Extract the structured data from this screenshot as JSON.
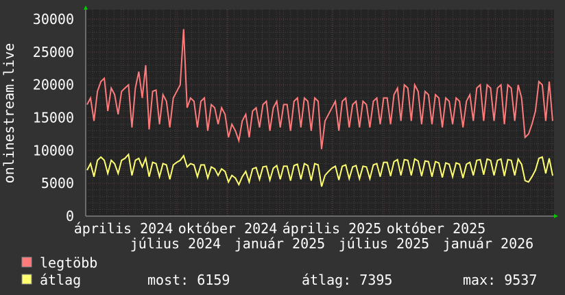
{
  "chart_data": {
    "type": "line",
    "ylabel": "onlinestream.live",
    "ylim": [
      0,
      30000
    ],
    "yticks": [
      "0",
      "5000",
      "10000",
      "15000",
      "20000",
      "25000",
      "30000"
    ],
    "yvalues": [
      0,
      5000,
      10000,
      15000,
      20000,
      25000,
      30000
    ],
    "xticks": [
      "április 2024",
      "július 2024",
      "október 2024",
      "január 2025",
      "április 2025",
      "július 2025",
      "október 2025",
      "január 2026"
    ],
    "grid": true,
    "colors": {
      "background": "#323232",
      "plot": "#242424",
      "legtobb": "#ff7b7b",
      "atlag": "#ffff70",
      "axis_arrow": "#00cc00"
    },
    "series": [
      {
        "name": "legtöbb",
        "values": [
          17000,
          18000,
          14500,
          19000,
          20500,
          21000,
          16000,
          19500,
          18500,
          15500,
          19000,
          19500,
          20000,
          13500,
          19500,
          22000,
          18000,
          23000,
          13200,
          19000,
          19200,
          14000,
          18500,
          17500,
          13500,
          18000,
          19000,
          20000,
          28500,
          16500,
          18000,
          17500,
          13500,
          17500,
          18000,
          13000,
          17000,
          16500,
          14000,
          16500,
          15500,
          12000,
          14000,
          13000,
          11500,
          14500,
          15500,
          12000,
          16000,
          16500,
          13500,
          17000,
          17500,
          13000,
          16500,
          17500,
          13500,
          17000,
          17000,
          13000,
          17500,
          18000,
          13500,
          18000,
          17500,
          13000,
          18000,
          17500,
          10200,
          14500,
          15500,
          16500,
          17500,
          13000,
          17500,
          18000,
          13500,
          17000,
          17500,
          13500,
          17500,
          17000,
          13500,
          17500,
          18000,
          14000,
          18000,
          18000,
          14000,
          18500,
          19500,
          14500,
          20000,
          19500,
          14500,
          20000,
          19000,
          14000,
          19000,
          18500,
          14000,
          18500,
          18000,
          13500,
          18000,
          17500,
          14000,
          18000,
          17500,
          13500,
          17500,
          18500,
          14500,
          19500,
          20000,
          14500,
          20000,
          19500,
          14500,
          19500,
          20000,
          14000,
          20000,
          19500,
          14500,
          20000,
          18000,
          12000,
          12500,
          14000,
          16000,
          20500,
          20000,
          14500,
          20500,
          14500
        ]
      },
      {
        "name": "átlag",
        "values": [
          7000,
          8000,
          6000,
          8500,
          9000,
          8500,
          6500,
          8500,
          8000,
          6500,
          8500,
          8800,
          9400,
          6200,
          8500,
          8800,
          7500,
          8800,
          6000,
          8200,
          8000,
          6000,
          8000,
          7800,
          5600,
          7800,
          8200,
          8500,
          9200,
          7500,
          8000,
          7800,
          6000,
          7800,
          7800,
          5800,
          7500,
          7200,
          6200,
          7200,
          6800,
          5200,
          6200,
          5800,
          4800,
          6000,
          6800,
          5200,
          7200,
          7400,
          5600,
          7500,
          7600,
          5500,
          7300,
          7700,
          5600,
          7600,
          7600,
          5400,
          7700,
          7900,
          5600,
          8000,
          7700,
          5400,
          8000,
          7800,
          4500,
          6200,
          6800,
          7300,
          7600,
          5500,
          7600,
          7800,
          5700,
          7500,
          7700,
          5700,
          7600,
          7500,
          5700,
          7800,
          8000,
          6000,
          8200,
          8200,
          6100,
          8300,
          8600,
          6200,
          8600,
          8500,
          6200,
          8700,
          8400,
          6100,
          8400,
          8300,
          6000,
          8300,
          8100,
          5900,
          8100,
          7900,
          6000,
          8100,
          7900,
          5800,
          7900,
          8200,
          6200,
          8500,
          8600,
          6300,
          8700,
          8500,
          6200,
          8500,
          8700,
          6100,
          8600,
          8500,
          6200,
          8700,
          7900,
          5400,
          5200,
          6000,
          7000,
          8800,
          9000,
          6500,
          8800,
          6159
        ]
      }
    ],
    "legend": {
      "items": [
        {
          "label": "legtöbb"
        },
        {
          "label": "átlag"
        }
      ],
      "stats": {
        "most": "most: 6159",
        "atlag": "átlag: 7395",
        "max": "max: 9537"
      },
      "placement": "bottom"
    }
  }
}
